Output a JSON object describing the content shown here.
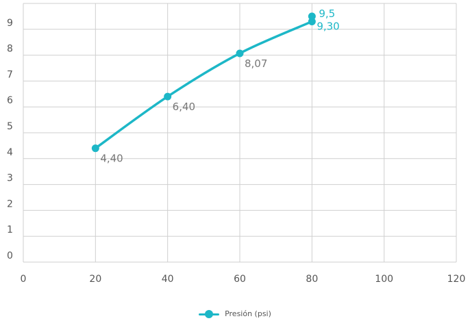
{
  "chart_data": {
    "type": "line",
    "title": "",
    "xlabel": "",
    "ylabel": "",
    "xlim": [
      0,
      120
    ],
    "ylim": [
      0,
      10
    ],
    "x_ticks": [
      "0",
      "20",
      "40",
      "60",
      "80",
      "100",
      "120"
    ],
    "y_ticks": [
      "0",
      "1",
      "2",
      "3",
      "4",
      "5",
      "6",
      "7",
      "8",
      "9"
    ],
    "grid": true,
    "legend_position": "bottom-center",
    "series": [
      {
        "name": "Presión (psi)",
        "color": "#1db7c7",
        "x": [
          20,
          40,
          60,
          80
        ],
        "y": [
          4.4,
          6.4,
          8.07,
          9.3
        ],
        "labels": [
          "4,40",
          "6,40",
          "8,07",
          "9,30"
        ]
      }
    ],
    "extra_points": [
      {
        "x": 80,
        "y": 9.5,
        "label": "9,5",
        "color": "#1db7c7"
      }
    ]
  }
}
